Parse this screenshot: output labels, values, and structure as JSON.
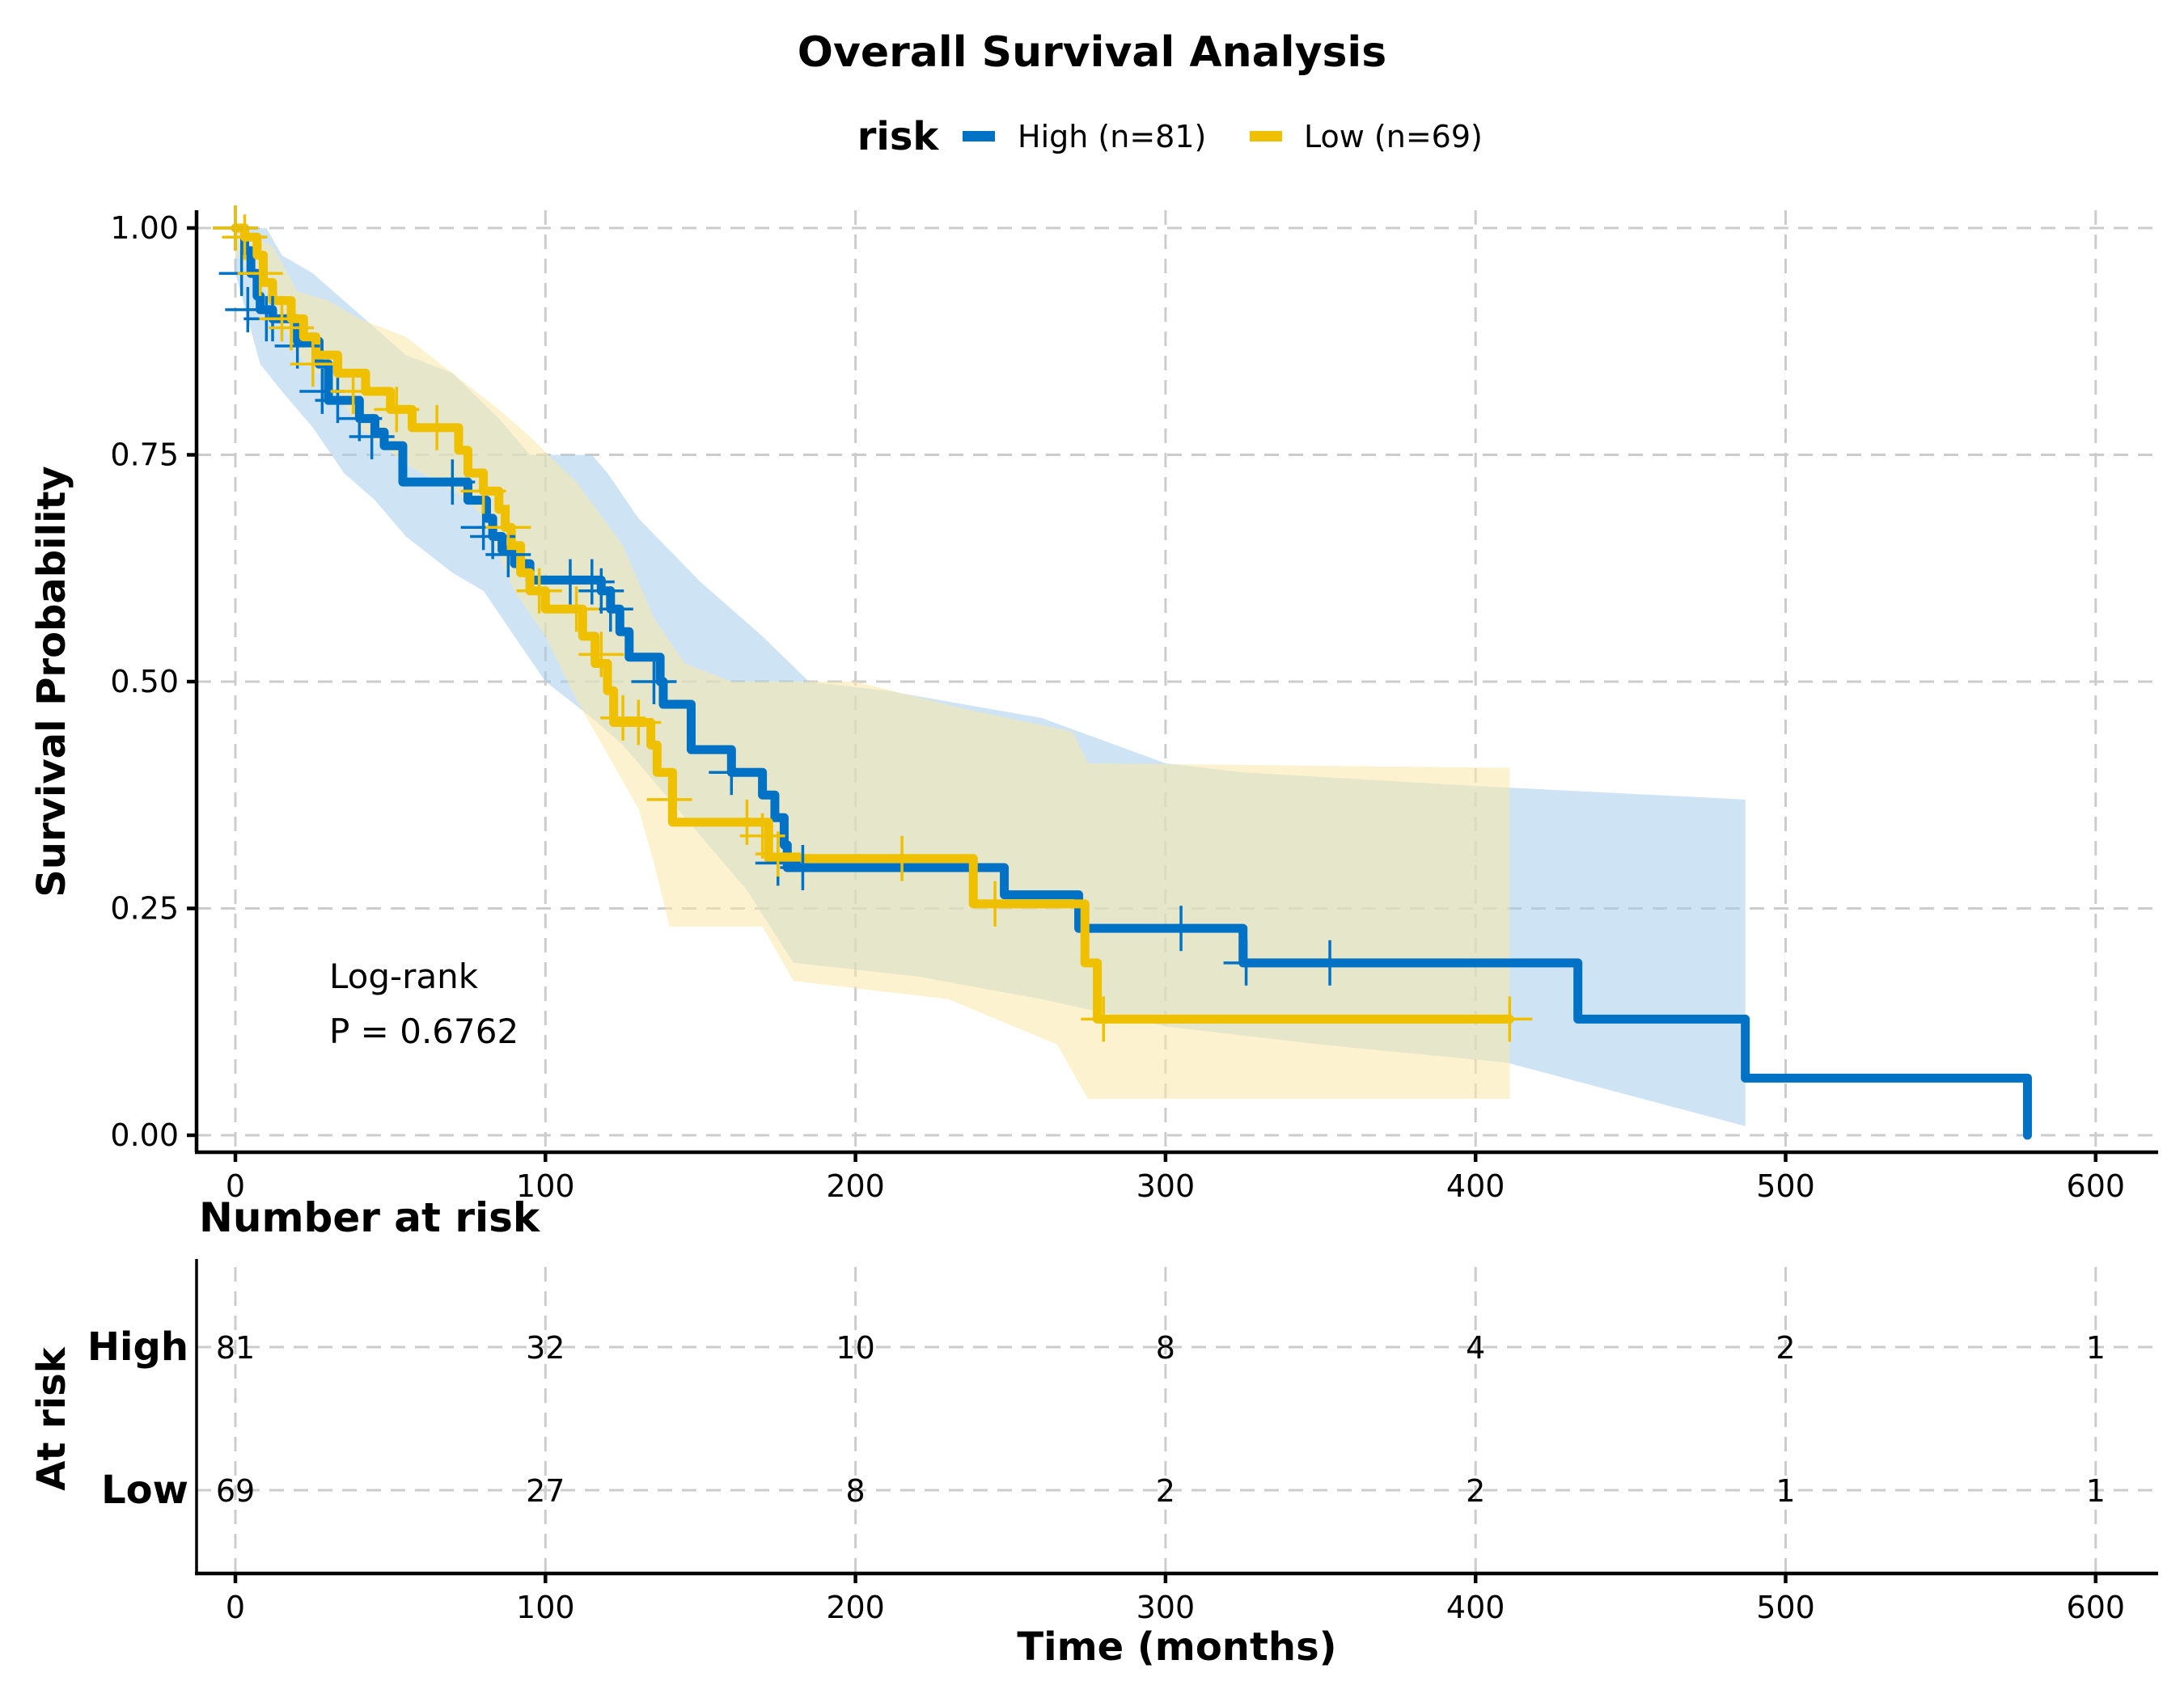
{
  "chart_data": {
    "type": "line",
    "subtype": "kaplan-meier",
    "title": "Overall Survival Analysis",
    "xlabel": "Time (months)",
    "ylabel": "Survival Probability",
    "xlim": [
      -10,
      620
    ],
    "ylim": [
      -0.02,
      1.02
    ],
    "xticks": [
      0,
      100,
      200,
      300,
      400,
      500,
      600
    ],
    "xtick_labels": [
      "0",
      "100",
      "200",
      "300",
      "400",
      "500",
      "600"
    ],
    "yticks": [
      0,
      0.25,
      0.5,
      0.75,
      1.0
    ],
    "ytick_labels": [
      "0.00",
      "0.25",
      "0.50",
      "0.75",
      "1.00"
    ],
    "grid": true,
    "legend": {
      "title": "risk",
      "placement": "top-center",
      "entries": [
        "High (n=81)",
        "Low (n=69)"
      ]
    },
    "annotation": {
      "line1": "Log-rank",
      "line2": "P = 0.6762"
    },
    "series": [
      {
        "name": "High (n=81)",
        "color": "#0072C6",
        "band_color": "#A6CEEC",
        "steps": [
          [
            0,
            1.0
          ],
          [
            3,
            0.975
          ],
          [
            5,
            0.95
          ],
          [
            7,
            0.925
          ],
          [
            8,
            0.91
          ],
          [
            12,
            0.9
          ],
          [
            20,
            0.875
          ],
          [
            27,
            0.85
          ],
          [
            30,
            0.81
          ],
          [
            40,
            0.79
          ],
          [
            45,
            0.775
          ],
          [
            48,
            0.76
          ],
          [
            54,
            0.72
          ],
          [
            75,
            0.7
          ],
          [
            81,
            0.68
          ],
          [
            83,
            0.66
          ],
          [
            86,
            0.645
          ],
          [
            90,
            0.63
          ],
          [
            95,
            0.612
          ],
          [
            118,
            0.6
          ],
          [
            121,
            0.58
          ],
          [
            124,
            0.555
          ],
          [
            127,
            0.527
          ],
          [
            137,
            0.5
          ],
          [
            138,
            0.475
          ],
          [
            147,
            0.425
          ],
          [
            160,
            0.4
          ],
          [
            170,
            0.375
          ],
          [
            174,
            0.35
          ],
          [
            177,
            0.32
          ],
          [
            178,
            0.295
          ],
          [
            248,
            0.265
          ],
          [
            272,
            0.228
          ],
          [
            325,
            0.19
          ],
          [
            433,
            0.128
          ],
          [
            487,
            0.063
          ],
          [
            578,
            0.0
          ]
        ],
        "end": 578,
        "censored": [
          [
            0,
            1.0
          ],
          [
            2,
            0.95
          ],
          [
            4,
            0.91
          ],
          [
            10,
            0.9
          ],
          [
            12,
            0.9
          ],
          [
            20,
            0.87
          ],
          [
            28,
            0.82
          ],
          [
            33,
            0.81
          ],
          [
            40,
            0.79
          ],
          [
            44,
            0.77
          ],
          [
            70,
            0.72
          ],
          [
            80,
            0.67
          ],
          [
            83,
            0.66
          ],
          [
            88,
            0.64
          ],
          [
            108,
            0.61
          ],
          [
            115,
            0.61
          ],
          [
            118,
            0.6
          ],
          [
            121,
            0.58
          ],
          [
            135,
            0.5
          ],
          [
            160,
            0.4
          ],
          [
            175,
            0.3
          ],
          [
            183,
            0.295
          ],
          [
            305,
            0.228
          ],
          [
            326,
            0.19
          ],
          [
            353,
            0.19
          ]
        ],
        "ci_upper": [
          [
            0,
            1.0
          ],
          [
            10,
            1.0
          ],
          [
            15,
            0.97
          ],
          [
            25,
            0.95
          ],
          [
            35,
            0.92
          ],
          [
            45,
            0.89
          ],
          [
            55,
            0.86
          ],
          [
            70,
            0.84
          ],
          [
            85,
            0.79
          ],
          [
            95,
            0.75
          ],
          [
            115,
            0.75
          ],
          [
            120,
            0.73
          ],
          [
            130,
            0.68
          ],
          [
            150,
            0.61
          ],
          [
            170,
            0.55
          ],
          [
            185,
            0.5
          ],
          [
            210,
            0.49
          ],
          [
            260,
            0.46
          ],
          [
            300,
            0.41
          ],
          [
            325,
            0.4
          ],
          [
            400,
            0.385
          ],
          [
            487,
            0.37
          ]
        ],
        "ci_lower": [
          [
            0,
            0.95
          ],
          [
            8,
            0.85
          ],
          [
            15,
            0.82
          ],
          [
            25,
            0.78
          ],
          [
            35,
            0.73
          ],
          [
            45,
            0.7
          ],
          [
            55,
            0.66
          ],
          [
            70,
            0.62
          ],
          [
            80,
            0.6
          ],
          [
            90,
            0.55
          ],
          [
            100,
            0.5
          ],
          [
            115,
            0.46
          ],
          [
            125,
            0.43
          ],
          [
            135,
            0.39
          ],
          [
            150,
            0.33
          ],
          [
            165,
            0.27
          ],
          [
            180,
            0.19
          ],
          [
            220,
            0.175
          ],
          [
            260,
            0.15
          ],
          [
            300,
            0.12
          ],
          [
            350,
            0.1
          ],
          [
            410,
            0.08
          ],
          [
            487,
            0.01
          ]
        ]
      },
      {
        "name": "Low (n=69)",
        "color": "#EFC000",
        "band_color": "#F9E8A8",
        "steps": [
          [
            0,
            1.0
          ],
          [
            3,
            0.99
          ],
          [
            7,
            0.97
          ],
          [
            9,
            0.94
          ],
          [
            12,
            0.92
          ],
          [
            18,
            0.9
          ],
          [
            22,
            0.88
          ],
          [
            26,
            0.86
          ],
          [
            33,
            0.84
          ],
          [
            42,
            0.82
          ],
          [
            50,
            0.8
          ],
          [
            57,
            0.78
          ],
          [
            72,
            0.755
          ],
          [
            75,
            0.73
          ],
          [
            80,
            0.71
          ],
          [
            85,
            0.69
          ],
          [
            87,
            0.67
          ],
          [
            89,
            0.65
          ],
          [
            92,
            0.62
          ],
          [
            95,
            0.6
          ],
          [
            100,
            0.58
          ],
          [
            112,
            0.55
          ],
          [
            116,
            0.52
          ],
          [
            120,
            0.49
          ],
          [
            122,
            0.455
          ],
          [
            134,
            0.43
          ],
          [
            136,
            0.4
          ],
          [
            141,
            0.345
          ],
          [
            172,
            0.305
          ],
          [
            238,
            0.255
          ],
          [
            274,
            0.19
          ],
          [
            278,
            0.128
          ]
        ],
        "end": 411,
        "censored": [
          [
            0,
            1.0
          ],
          [
            3,
            0.99
          ],
          [
            8,
            0.95
          ],
          [
            15,
            0.9
          ],
          [
            18,
            0.89
          ],
          [
            25,
            0.85
          ],
          [
            38,
            0.82
          ],
          [
            52,
            0.8
          ],
          [
            65,
            0.78
          ],
          [
            80,
            0.71
          ],
          [
            88,
            0.67
          ],
          [
            98,
            0.6
          ],
          [
            110,
            0.58
          ],
          [
            118,
            0.53
          ],
          [
            125,
            0.46
          ],
          [
            130,
            0.455
          ],
          [
            140,
            0.37
          ],
          [
            165,
            0.345
          ],
          [
            170,
            0.33
          ],
          [
            175,
            0.31
          ],
          [
            215,
            0.305
          ],
          [
            245,
            0.255
          ],
          [
            280,
            0.128
          ],
          [
            411,
            0.128
          ]
        ],
        "ci_upper": [
          [
            0,
            1.0
          ],
          [
            12,
            0.98
          ],
          [
            20,
            0.93
          ],
          [
            30,
            0.92
          ],
          [
            40,
            0.9
          ],
          [
            55,
            0.88
          ],
          [
            70,
            0.84
          ],
          [
            85,
            0.8
          ],
          [
            95,
            0.77
          ],
          [
            110,
            0.72
          ],
          [
            125,
            0.65
          ],
          [
            135,
            0.57
          ],
          [
            145,
            0.52
          ],
          [
            160,
            0.5
          ],
          [
            200,
            0.5
          ],
          [
            235,
            0.47
          ],
          [
            270,
            0.445
          ],
          [
            275,
            0.41
          ],
          [
            411,
            0.405
          ]
        ],
        "ci_lower": [
          [
            0,
            0.97
          ],
          [
            10,
            0.93
          ],
          [
            20,
            0.86
          ],
          [
            30,
            0.83
          ],
          [
            40,
            0.78
          ],
          [
            55,
            0.74
          ],
          [
            65,
            0.72
          ],
          [
            75,
            0.7
          ],
          [
            80,
            0.68
          ],
          [
            90,
            0.6
          ],
          [
            100,
            0.55
          ],
          [
            110,
            0.48
          ],
          [
            120,
            0.42
          ],
          [
            130,
            0.36
          ],
          [
            135,
            0.3
          ],
          [
            140,
            0.23
          ],
          [
            170,
            0.23
          ],
          [
            180,
            0.17
          ],
          [
            230,
            0.15
          ],
          [
            265,
            0.1
          ],
          [
            275,
            0.04
          ],
          [
            411,
            0.04
          ]
        ]
      }
    ],
    "risk_table": {
      "title": "Number at risk",
      "ylabel": "At risk",
      "times": [
        0,
        100,
        200,
        300,
        400,
        500,
        600
      ],
      "rows": [
        {
          "label": "High",
          "values": [
            "81",
            "32",
            "10",
            "8",
            "4",
            "2",
            "1"
          ]
        },
        {
          "label": "Low",
          "values": [
            "69",
            "27",
            "8",
            "2",
            "2",
            "1",
            "1"
          ]
        }
      ]
    }
  }
}
